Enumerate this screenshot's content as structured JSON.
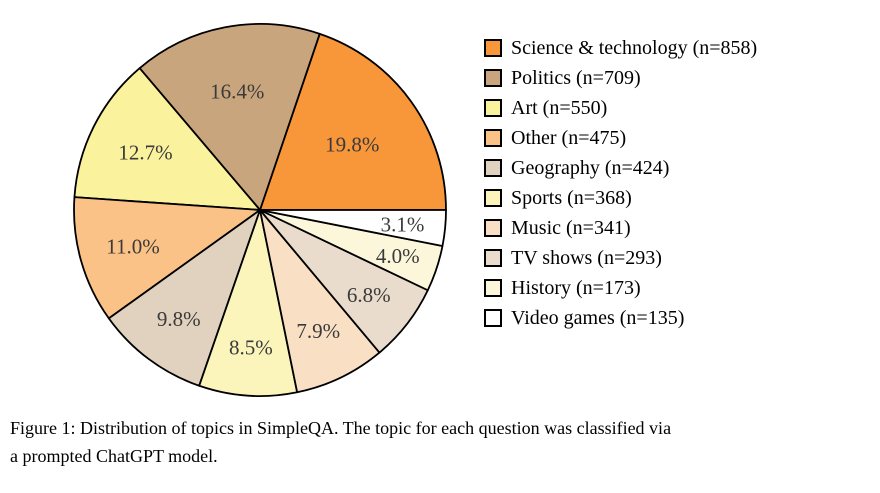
{
  "chart_data": {
    "type": "pie",
    "title": "",
    "direction": "counterclockwise",
    "start_angle_deg": 0,
    "center": [
      260,
      210
    ],
    "radius": 186,
    "stroke_color": "#000000",
    "label_color": "#3a3a3a",
    "slices": [
      {
        "label": "Science & technology",
        "n": 858,
        "pct": 19.8,
        "pct_label": "19.8%",
        "color": "#F8963A",
        "label_distance": 0.61
      },
      {
        "label": "Politics",
        "n": 709,
        "pct": 16.4,
        "pct_label": "16.4%",
        "color": "#C9A57E",
        "label_distance": 0.65
      },
      {
        "label": "Art",
        "n": 550,
        "pct": 12.7,
        "pct_label": "12.7%",
        "color": "#FAF29D",
        "label_distance": 0.69
      },
      {
        "label": "Other",
        "n": 475,
        "pct": 11.0,
        "pct_label": "11.0%",
        "color": "#FBC287",
        "label_distance": 0.71
      },
      {
        "label": "Geography",
        "n": 424,
        "pct": 9.8,
        "pct_label": "9.8%",
        "color": "#E1D1BF",
        "label_distance": 0.73
      },
      {
        "label": "Sports",
        "n": 368,
        "pct": 8.5,
        "pct_label": "8.5%",
        "color": "#FBF5BB",
        "label_distance": 0.74
      },
      {
        "label": "Music",
        "n": 341,
        "pct": 7.9,
        "pct_label": "7.9%",
        "color": "#F9DFC4",
        "label_distance": 0.72
      },
      {
        "label": "TV shows",
        "n": 293,
        "pct": 6.8,
        "pct_label": "6.8%",
        "color": "#E9DCCC",
        "label_distance": 0.74
      },
      {
        "label": "History",
        "n": 173,
        "pct": 4.0,
        "pct_label": "4.0%",
        "color": "#FCF7DA",
        "label_distance": 0.78
      },
      {
        "label": "Video games",
        "n": 135,
        "pct": 3.1,
        "pct_label": "3.1%",
        "color": "#FFFFFF",
        "label_distance": 0.77
      }
    ],
    "legend": {
      "position": "right",
      "items": [
        "Science & technology (n=858)",
        "Politics (n=709)",
        "Art (n=550)",
        "Other (n=475)",
        "Geography (n=424)",
        "Sports (n=368)",
        "Music (n=341)",
        "TV shows (n=293)",
        "History (n=173)",
        "Video games (n=135)"
      ]
    }
  },
  "caption": {
    "lines": [
      "Figure 1: Distribution of topics in SimpleQA. The topic for each question was classified via",
      "a prompted ChatGPT model."
    ]
  }
}
